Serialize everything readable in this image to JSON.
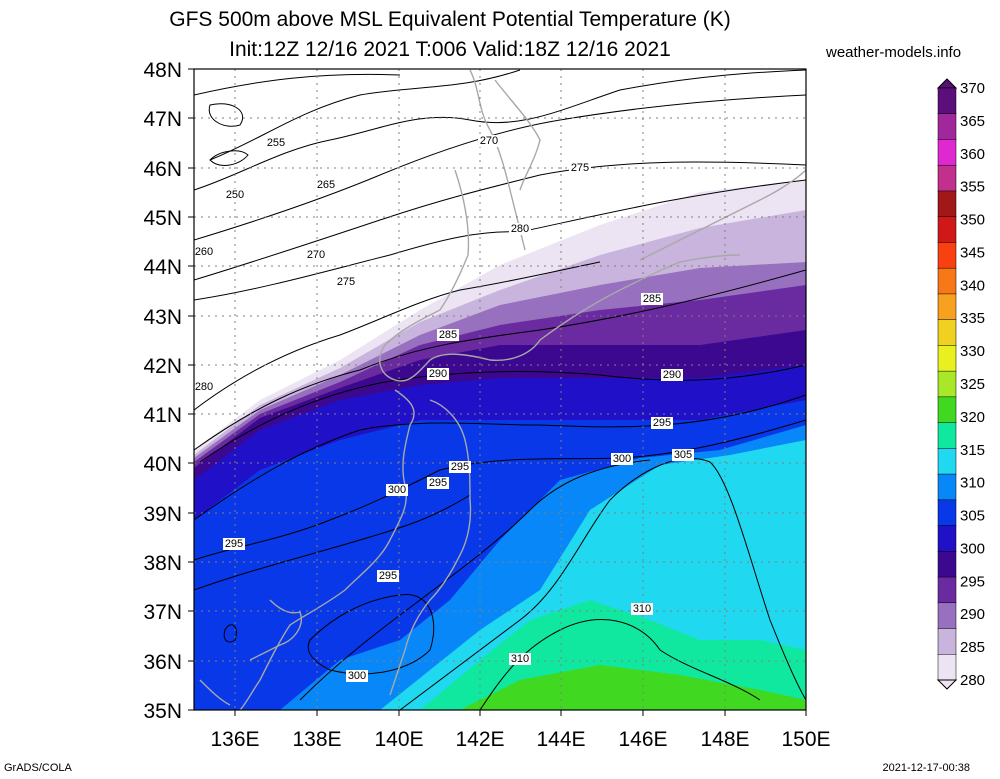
{
  "title_line1": "GFS 500m above MSL Equivalent Potential Temperature (K)",
  "title_line2": "Init:12Z 12/16 2021 T:006 Valid:18Z 12/16 2021",
  "site": "weather-models.info",
  "footer_left": "GrADS/COLA",
  "footer_right": "2021-12-17-00:38",
  "lat_labels": [
    "48N",
    "47N",
    "46N",
    "45N",
    "44N",
    "43N",
    "42N",
    "41N",
    "40N",
    "39N",
    "38N",
    "37N",
    "36N",
    "35N"
  ],
  "lon_labels": [
    "136E",
    "138E",
    "140E",
    "142E",
    "144E",
    "146E",
    "148E",
    "150E"
  ],
  "colorbar": {
    "labels": [
      "370",
      "365",
      "360",
      "355",
      "350",
      "345",
      "340",
      "335",
      "330",
      "325",
      "320",
      "315",
      "310",
      "305",
      "300",
      "295",
      "290",
      "285",
      "280"
    ],
    "colors": [
      "#5a0f7a",
      "#a0289c",
      "#e028d0",
      "#c0308c",
      "#a01818",
      "#d01818",
      "#f84010",
      "#f87818",
      "#f8a020",
      "#f0d020",
      "#e8f020",
      "#a8e828",
      "#40d820",
      "#10e8a0",
      "#20d8f0",
      "#0888f8",
      "#0838e8",
      "#2010c8",
      "#3c0890",
      "#6a2aa0",
      "#9870c0",
      "#c8b4dc",
      "#ece4f2"
    ]
  },
  "contour_labels": [
    "255",
    "250",
    "265",
    "260",
    "270",
    "275",
    "270",
    "275",
    "280",
    "280",
    "285",
    "285",
    "290",
    "290",
    "295",
    "295",
    "295",
    "300",
    "300",
    "305",
    "295",
    "310",
    "310",
    "300",
    "295"
  ],
  "colors": {
    "land_outline": "#a8a8a8",
    "contour": "#000000",
    "grid": "#808080"
  }
}
